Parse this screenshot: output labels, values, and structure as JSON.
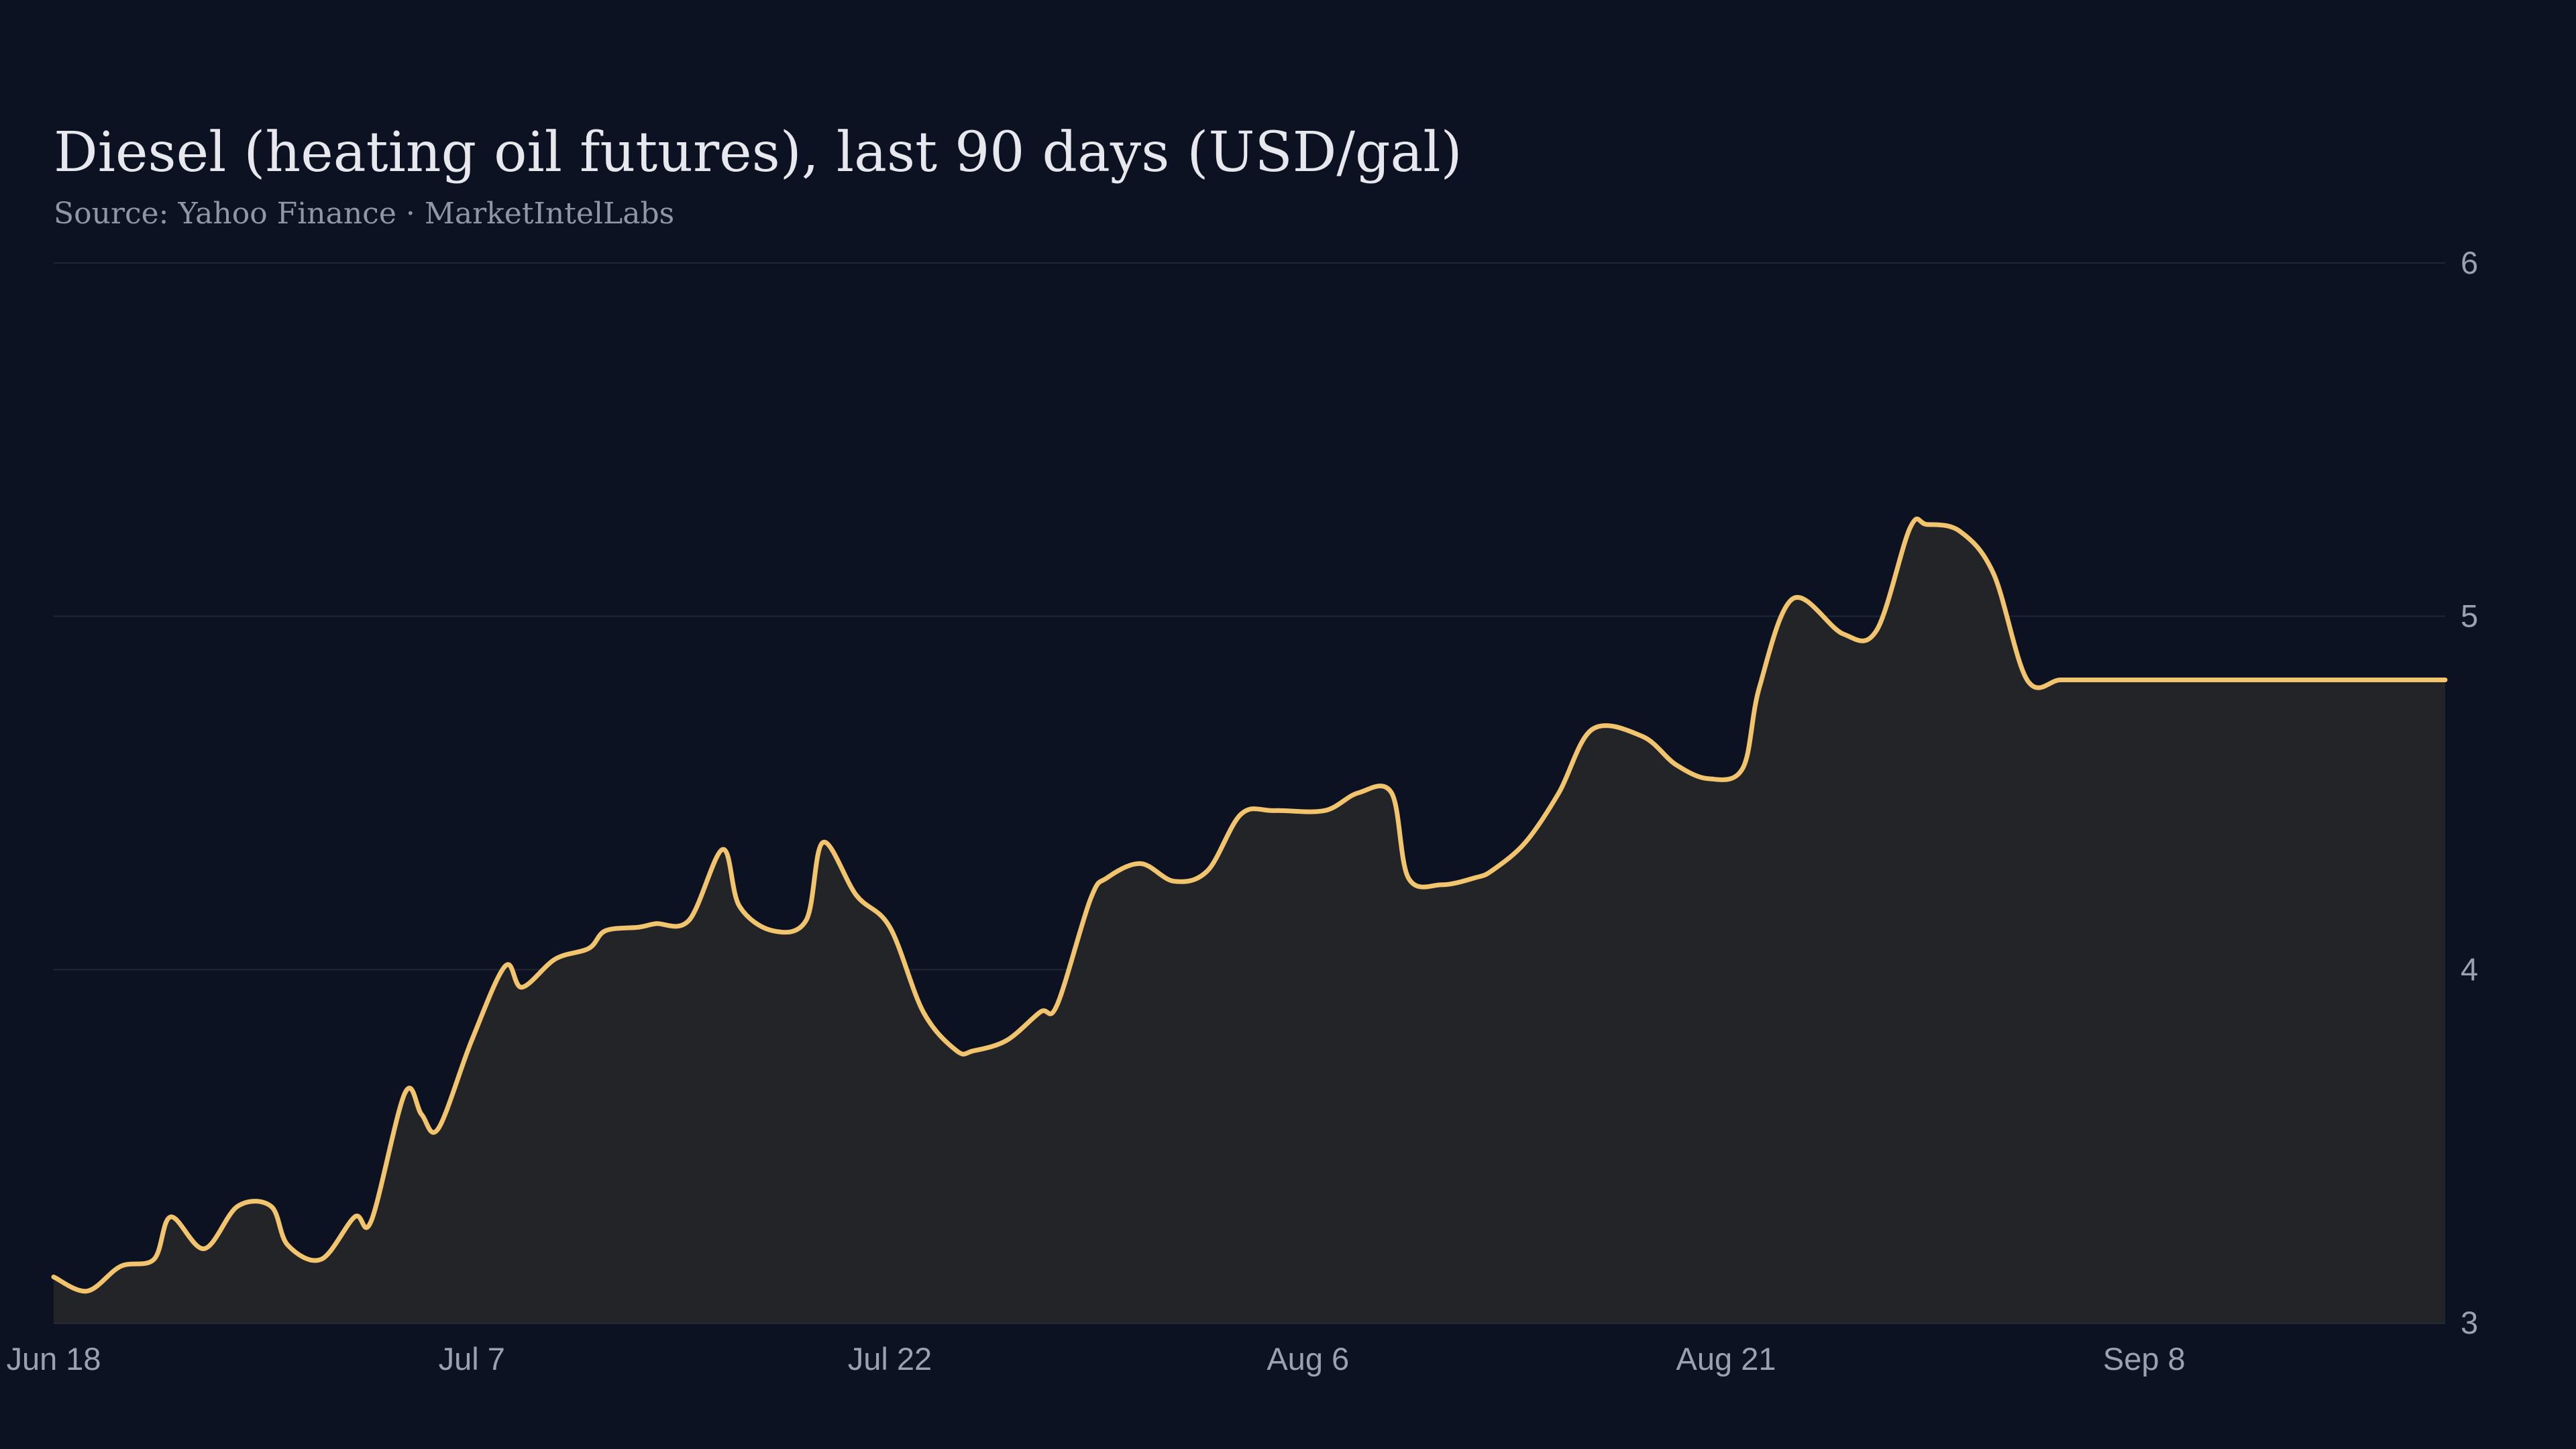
{
  "chart_data": {
    "type": "area",
    "title": "Diesel (heating oil futures), last 90 days (USD/gal)",
    "subtitle": "Source: Yahoo Finance · MarketIntelLabs",
    "xlabel": "",
    "ylabel": "",
    "ylim": [
      3,
      6
    ],
    "yticks": [
      3,
      4,
      5,
      6
    ],
    "x_tick_labels": [
      "Jun 18",
      "Jul  7",
      "Jul 22",
      "Aug  6",
      "Aug 21",
      "Sep  8"
    ],
    "x_tick_days": [
      0,
      25,
      50,
      75,
      100,
      125
    ],
    "grid": true,
    "legend": "none",
    "colors": {
      "background": "#0c1222",
      "line": "#f2c46d",
      "area": "#222427",
      "grid": "#1e2736",
      "text": "#e6e8ee",
      "muted": "#9aa2b1"
    },
    "series": [
      {
        "x": [
          0,
          2,
          4,
          6,
          7,
          9,
          11,
          13,
          14,
          16,
          18,
          19,
          21,
          22,
          23,
          25,
          27,
          28,
          30,
          32,
          33,
          35,
          36,
          38,
          40,
          41,
          43,
          45,
          46,
          48,
          50,
          52,
          54,
          55,
          57,
          59,
          60,
          62,
          63,
          65,
          67,
          69,
          71,
          73,
          76,
          78,
          80,
          81,
          83,
          85,
          86,
          88,
          90,
          92,
          95,
          97,
          99,
          101,
          102,
          104,
          107,
          109,
          111,
          112,
          114,
          116,
          118,
          120,
          122,
          124,
          126,
          128,
          129,
          131,
          132,
          135,
          137,
          139,
          141,
          143
        ],
        "y": [
          3.13,
          3.09,
          3.16,
          3.18,
          3.3,
          3.21,
          3.33,
          3.33,
          3.22,
          3.18,
          3.3,
          3.29,
          3.65,
          3.59,
          3.55,
          3.8,
          4.01,
          3.95,
          4.03,
          4.06,
          4.11,
          4.12,
          4.13,
          4.14,
          4.34,
          4.18,
          4.11,
          4.14,
          4.36,
          4.21,
          4.12,
          3.88,
          3.77,
          3.77,
          3.8,
          3.88,
          3.9,
          4.2,
          4.26,
          4.3,
          4.25,
          4.28,
          4.44,
          4.45,
          4.45,
          4.5,
          4.5,
          4.26,
          4.24,
          4.26,
          4.28,
          4.36,
          4.5,
          4.68,
          4.66,
          4.58,
          4.54,
          4.57,
          4.8,
          5.05,
          4.95,
          4.96,
          5.25,
          5.26,
          5.24,
          5.12,
          4.82,
          4.82,
          4.82,
          4.82,
          4.82,
          4.82,
          4.82,
          4.82,
          4.82,
          4.82,
          4.82,
          4.82,
          4.82,
          4.82
        ]
      }
    ]
  }
}
